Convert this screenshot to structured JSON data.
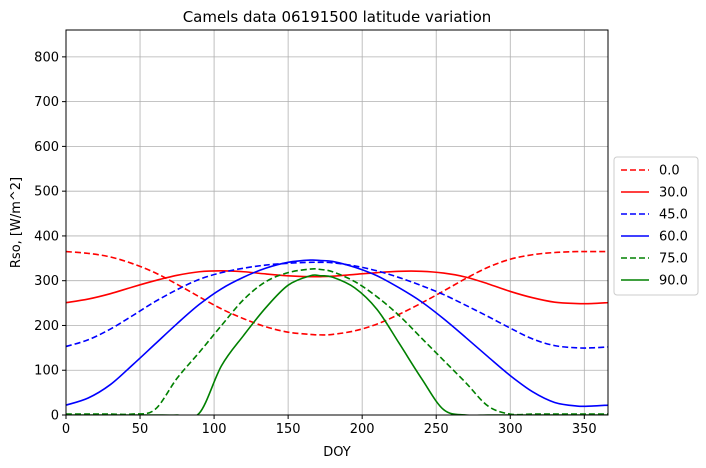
{
  "chart_data": {
    "type": "line",
    "title": "Camels data 06191500 latitude variation",
    "xlabel": "DOY",
    "ylabel": "Rso, [W/m^2]",
    "xlim": [
      0,
      366
    ],
    "ylim": [
      0,
      860
    ],
    "xticks": [
      0,
      50,
      100,
      150,
      200,
      250,
      300,
      350
    ],
    "yticks": [
      0,
      100,
      200,
      300,
      400,
      500,
      600,
      700,
      800
    ],
    "grid": true,
    "legend_position": "center-right-outside",
    "x": [
      0,
      15,
      30,
      45,
      60,
      75,
      90,
      105,
      120,
      135,
      150,
      165,
      172,
      180,
      195,
      210,
      225,
      240,
      255,
      270,
      285,
      300,
      315,
      330,
      345,
      355,
      366
    ],
    "series": [
      {
        "name": "0.0",
        "color": "#ff0000",
        "style": "dashed",
        "values": [
          365,
          361,
          353,
          338,
          318,
          292,
          264,
          237,
          215,
          197,
          185,
          180,
          179,
          180,
          188,
          203,
          225,
          250,
          277,
          305,
          330,
          348,
          358,
          363,
          365,
          365,
          365
        ]
      },
      {
        "name": "30.0",
        "color": "#ff0000",
        "style": "solid",
        "values": [
          251,
          259,
          271,
          286,
          300,
          312,
          320,
          322,
          320,
          315,
          311,
          309,
          309,
          310,
          314,
          318,
          321,
          321,
          317,
          308,
          293,
          276,
          262,
          252,
          249,
          249,
          251
        ]
      },
      {
        "name": "45.0",
        "color": "#0000ff",
        "style": "dashed",
        "values": [
          153,
          168,
          192,
          222,
          253,
          280,
          303,
          318,
          328,
          335,
          339,
          341,
          341,
          340,
          333,
          322,
          307,
          289,
          269,
          245,
          220,
          194,
          170,
          155,
          150,
          150,
          152
        ]
      },
      {
        "name": "60.0",
        "color": "#0000ff",
        "style": "solid",
        "values": [
          22,
          38,
          68,
          112,
          158,
          204,
          247,
          282,
          308,
          328,
          341,
          346,
          345,
          343,
          330,
          311,
          284,
          253,
          215,
          173,
          130,
          88,
          52,
          28,
          20,
          20,
          22
        ]
      },
      {
        "name": "75.0",
        "color": "#008000",
        "style": "dashed",
        "values": [
          2,
          2,
          2,
          2,
          12,
          82,
          140,
          200,
          258,
          298,
          318,
          326,
          325,
          320,
          298,
          264,
          222,
          172,
          122,
          72,
          20,
          2,
          2,
          2,
          2,
          2,
          2
        ]
      },
      {
        "name": "90.0",
        "color": "#008000",
        "style": "solid",
        "values": [
          0,
          0,
          0,
          0,
          0,
          0,
          4,
          110,
          178,
          240,
          290,
          311,
          311,
          308,
          284,
          236,
          160,
          82,
          12,
          0,
          0,
          0,
          0,
          0,
          0,
          0,
          0
        ]
      }
    ]
  }
}
